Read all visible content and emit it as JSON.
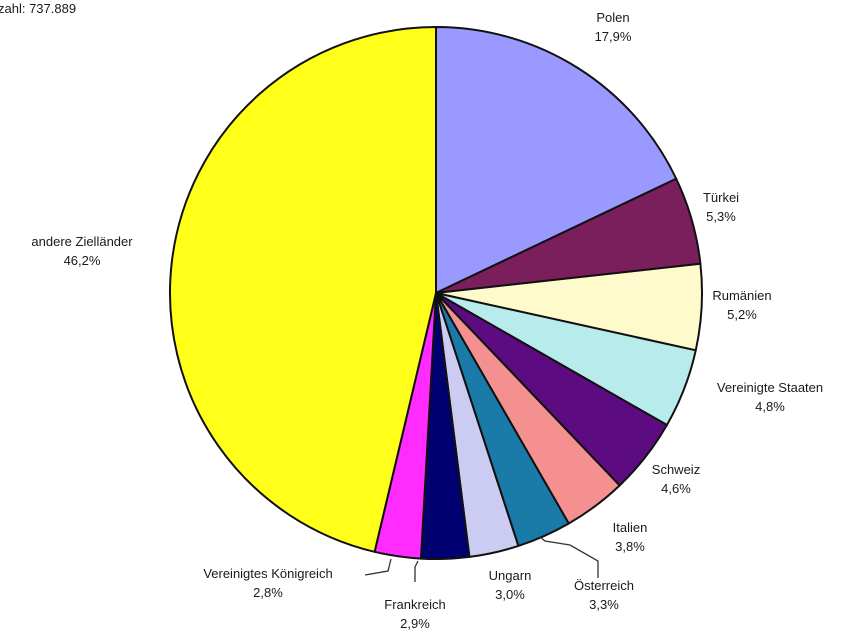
{
  "header_text": "zahl: 737.889",
  "chart_data": {
    "type": "pie",
    "start": "12 o'clock",
    "direction": "clockwise",
    "slices": [
      {
        "label": "Polen",
        "value_text": "17,9%",
        "value": 17.9,
        "color": "#9999ff"
      },
      {
        "label": "Türkei",
        "value_text": "5,3%",
        "value": 5.3,
        "color": "#7a1f5c"
      },
      {
        "label": "Rumänien",
        "value_text": "5,2%",
        "value": 5.2,
        "color": "#fffacc"
      },
      {
        "label": "Vereinigte Staaten",
        "value_text": "4,8%",
        "value": 4.8,
        "color": "#b8ecec"
      },
      {
        "label": "Schweiz",
        "value_text": "4,6%",
        "value": 4.6,
        "color": "#5c0c80"
      },
      {
        "label": "Italien",
        "value_text": "3,8%",
        "value": 3.8,
        "color": "#f49090"
      },
      {
        "label": "Österreich",
        "value_text": "3,3%",
        "value": 3.3,
        "color": "#1a7aa8"
      },
      {
        "label": "Ungarn",
        "value_text": "3,0%",
        "value": 3.0,
        "color": "#ccccf2"
      },
      {
        "label": "Frankreich",
        "value_text": "2,9%",
        "value": 2.9,
        "color": "#000070"
      },
      {
        "label": "Vereinigtes Königreich",
        "value_text": "2,8%",
        "value": 2.8,
        "color": "#ff2bff"
      },
      {
        "label": "andere Zielländer",
        "value_text": "46,2%",
        "value": 46.2,
        "color": "#ffff1a"
      }
    ]
  }
}
